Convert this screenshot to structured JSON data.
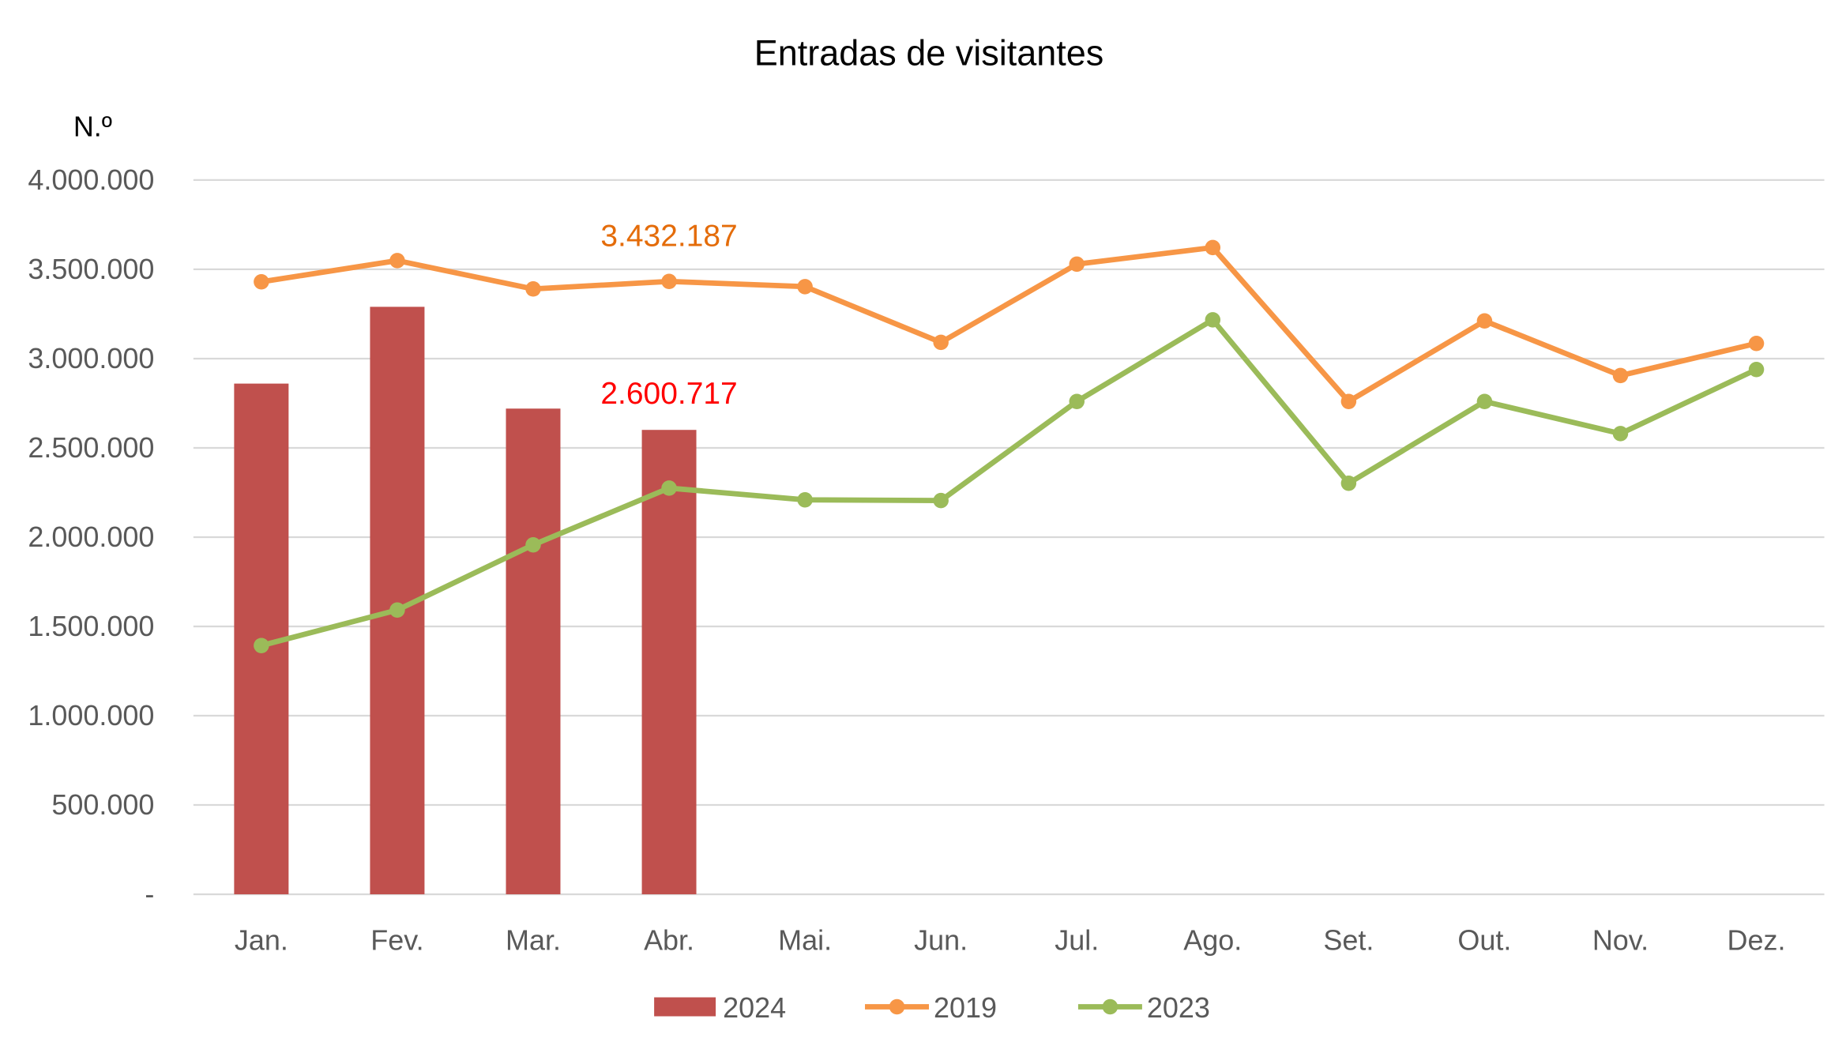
{
  "chart_data": {
    "type": "bar+line",
    "title": "Entradas de visitantes",
    "ylabel": "N.º",
    "xlabel": "",
    "ylim": [
      0,
      4000000
    ],
    "grid": true,
    "legend_position": "bottom",
    "categories": [
      "Jan.",
      "Fev.",
      "Mar.",
      "Abr.",
      "Mai.",
      "Jun.",
      "Jul.",
      "Ago.",
      "Set.",
      "Out.",
      "Nov.",
      "Dez."
    ],
    "y_ticks": [
      {
        "value": 0,
        "label": "-"
      },
      {
        "value": 500000,
        "label": "500.000"
      },
      {
        "value": 1000000,
        "label": "1.000.000"
      },
      {
        "value": 1500000,
        "label": "1.500.000"
      },
      {
        "value": 2000000,
        "label": "2.000.000"
      },
      {
        "value": 2500000,
        "label": "2.500.000"
      },
      {
        "value": 3000000,
        "label": "3.000.000"
      },
      {
        "value": 3500000,
        "label": "3.500.000"
      },
      {
        "value": 4000000,
        "label": "4.000.000"
      }
    ],
    "series": [
      {
        "name": "2024",
        "type": "bar",
        "color": "#c0504d",
        "values": [
          2860000,
          3290000,
          2720000,
          2600717,
          null,
          null,
          null,
          null,
          null,
          null,
          null,
          null
        ]
      },
      {
        "name": "2019",
        "type": "line",
        "color": "#f79646",
        "values": [
          3430000,
          3549000,
          3390000,
          3432187,
          3403000,
          3091000,
          3529000,
          3622000,
          2760000,
          3211000,
          2905000,
          3085000
        ]
      },
      {
        "name": "2023",
        "type": "line",
        "color": "#9bbb59",
        "values": [
          1393000,
          1592000,
          1957000,
          2275000,
          2209000,
          2205000,
          2760000,
          3217000,
          2302000,
          2760000,
          2580000,
          2939000
        ]
      }
    ],
    "annotations": [
      {
        "text": "3.432.187",
        "series": "2019",
        "category": "Abr.",
        "color": "#e46c0a"
      },
      {
        "text": "2.600.717",
        "series": "2024",
        "category": "Abr.",
        "color": "#ff0000"
      }
    ]
  }
}
